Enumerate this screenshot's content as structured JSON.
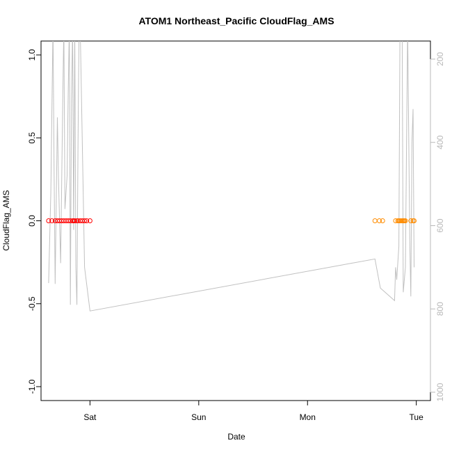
{
  "chart_data": {
    "type": "scatter",
    "title": "ATOM1 Northeast_Pacific CloudFlag_AMS",
    "xlabel": "Date",
    "ylabel": "CloudFlag_AMS",
    "ylim": [
      -1.0,
      1.0
    ],
    "y_ticks": [
      "-1.0",
      "-0.5",
      "0.0",
      "0.5",
      "1.0"
    ],
    "x_ticks": [
      {
        "label": "Sat",
        "value": 1.0
      },
      {
        "label": "Sun",
        "value": 2.0
      },
      {
        "label": "Mon",
        "value": 3.0
      },
      {
        "label": "Tue",
        "value": 4.0
      }
    ],
    "xlim": [
      0.55,
      4.13
    ],
    "right_axis": {
      "ylim": [
        1000,
        180
      ],
      "reversed": true,
      "ticks": [
        "200",
        "400",
        "600",
        "800",
        "1000"
      ],
      "color": "#b8b8b8"
    },
    "grid": false,
    "legend": "none",
    "series": [
      {
        "color": "#ff0000",
        "marker": "open-circle",
        "x": [
          0.62,
          0.65,
          0.68,
          0.7,
          0.72,
          0.74,
          0.76,
          0.78,
          0.8,
          0.82,
          0.84,
          0.85,
          0.86,
          0.88,
          0.89,
          0.91,
          0.93,
          0.95,
          0.97,
          1.0
        ],
        "y": [
          0,
          0,
          0,
          0,
          0,
          0,
          0,
          0,
          0,
          0,
          0,
          0,
          0,
          0,
          0,
          0,
          0,
          0,
          0,
          0
        ]
      },
      {
        "color": "#ff8c00",
        "marker": "open-circle",
        "x": [
          3.62,
          3.66,
          3.69,
          3.81,
          3.83,
          3.84,
          3.85,
          3.86,
          3.87,
          3.88,
          3.88,
          3.89,
          3.89,
          3.9,
          3.95,
          3.97,
          3.98
        ],
        "y": [
          0,
          0,
          0,
          0,
          0,
          0,
          0,
          0,
          0,
          0,
          0,
          0,
          0,
          0,
          0,
          0,
          0
        ]
      },
      {
        "axis": "right",
        "type": "line",
        "color": "#c0c0c0",
        "x": [
          0.62,
          0.64,
          0.66,
          0.67,
          0.68,
          0.7,
          0.71,
          0.73,
          0.75,
          0.76,
          0.77,
          0.79,
          0.8,
          0.81,
          0.82,
          0.83,
          0.84,
          0.85,
          0.86,
          0.87,
          0.88,
          0.89,
          0.9,
          0.91,
          0.95,
          1.0,
          3.62,
          3.67,
          3.8,
          3.81,
          3.82,
          3.84,
          3.85,
          3.87,
          3.88,
          3.9,
          3.92,
          3.94,
          3.95,
          3.96,
          3.97,
          3.98
        ],
        "y": [
          738,
          520,
          120,
          470,
          740,
          340,
          480,
          690,
          290,
          120,
          560,
          480,
          280,
          120,
          790,
          300,
          120,
          610,
          120,
          700,
          790,
          400,
          120,
          120,
          700,
          805,
          680,
          750,
          780,
          700,
          730,
          650,
          120,
          120,
          760,
          700,
          120,
          640,
          770,
          400,
          320,
          700
        ]
      }
    ]
  }
}
